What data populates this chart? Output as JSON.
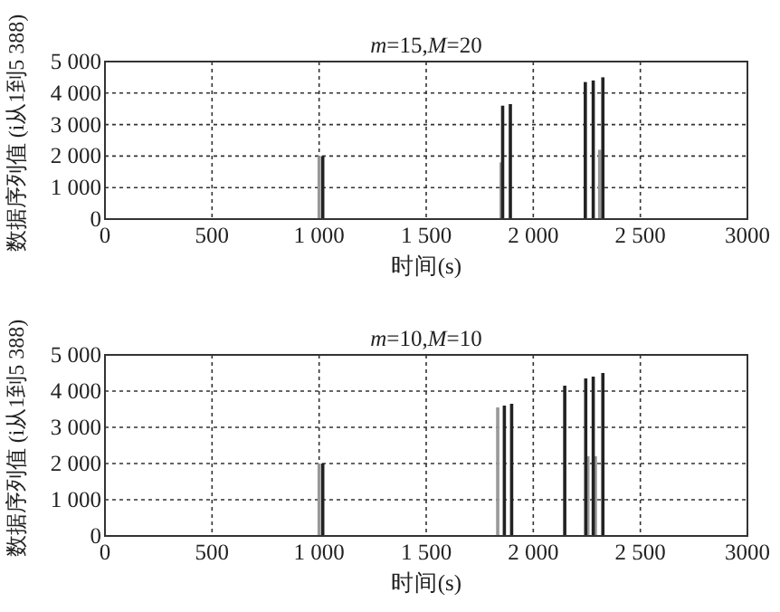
{
  "chart_data": [
    {
      "type": "bar",
      "title": "*m*=15,*M*=20",
      "xlabel": "时间(s)",
      "ylabel": "数据序列值 (i从1到5 388)",
      "series": [
        {
          "color": "#999999",
          "x": [
            1000,
            1850,
            2310
          ],
          "values": [
            2000,
            1800,
            2200
          ]
        },
        {
          "color": "#222222",
          "x": [
            1017,
            1857,
            1893,
            2243,
            2280,
            2325
          ],
          "values": [
            2000,
            3600,
            3650,
            4350,
            4400,
            4500
          ]
        }
      ],
      "xlim": [
        0,
        3000
      ],
      "ylim": [
        0,
        5000
      ],
      "xticks": [
        0,
        500,
        {
          "value": 1000,
          "label": "1 000"
        },
        {
          "value": 1500,
          "label": "1 500"
        },
        {
          "value": 2000,
          "label": "2 000"
        },
        {
          "value": 2500,
          "label": "2 500"
        },
        3000
      ],
      "yticks": [
        0,
        {
          "value": 1000,
          "label": "1 000"
        },
        {
          "value": 2000,
          "label": "2 000"
        },
        {
          "value": 3000,
          "label": "3 000"
        },
        {
          "value": 4000,
          "label": "4 000"
        },
        {
          "value": 5000,
          "label": "5 000"
        }
      ],
      "grid": true
    },
    {
      "type": "bar",
      "title": "*m*=10,*M*=10",
      "xlabel": "时间(s)",
      "ylabel": "数据序列值 (i从1到5 388)",
      "series": [
        {
          "color": "#999999",
          "x": [
            1000,
            1834,
            2255,
            2290
          ],
          "values": [
            2000,
            3550,
            2200,
            2200
          ]
        },
        {
          "color": "#222222",
          "x": [
            1017,
            1865,
            1899,
            2147,
            2245,
            2280,
            2325
          ],
          "values": [
            2000,
            3600,
            3650,
            4150,
            4350,
            4400,
            4500
          ]
        }
      ],
      "xlim": [
        0,
        3000
      ],
      "ylim": [
        0,
        5000
      ],
      "xticks": [
        0,
        500,
        {
          "value": 1000,
          "label": "1 000"
        },
        {
          "value": 1500,
          "label": "1 500"
        },
        {
          "value": 2000,
          "label": "2 000"
        },
        {
          "value": 2500,
          "label": "2 500"
        },
        3000
      ],
      "yticks": [
        0,
        {
          "value": 1000,
          "label": "1 000"
        },
        {
          "value": 2000,
          "label": "2 000"
        },
        {
          "value": 3000,
          "label": "3 000"
        },
        {
          "value": 4000,
          "label": "4 000"
        },
        {
          "value": 5000,
          "label": "5 000"
        }
      ],
      "grid": true
    }
  ]
}
